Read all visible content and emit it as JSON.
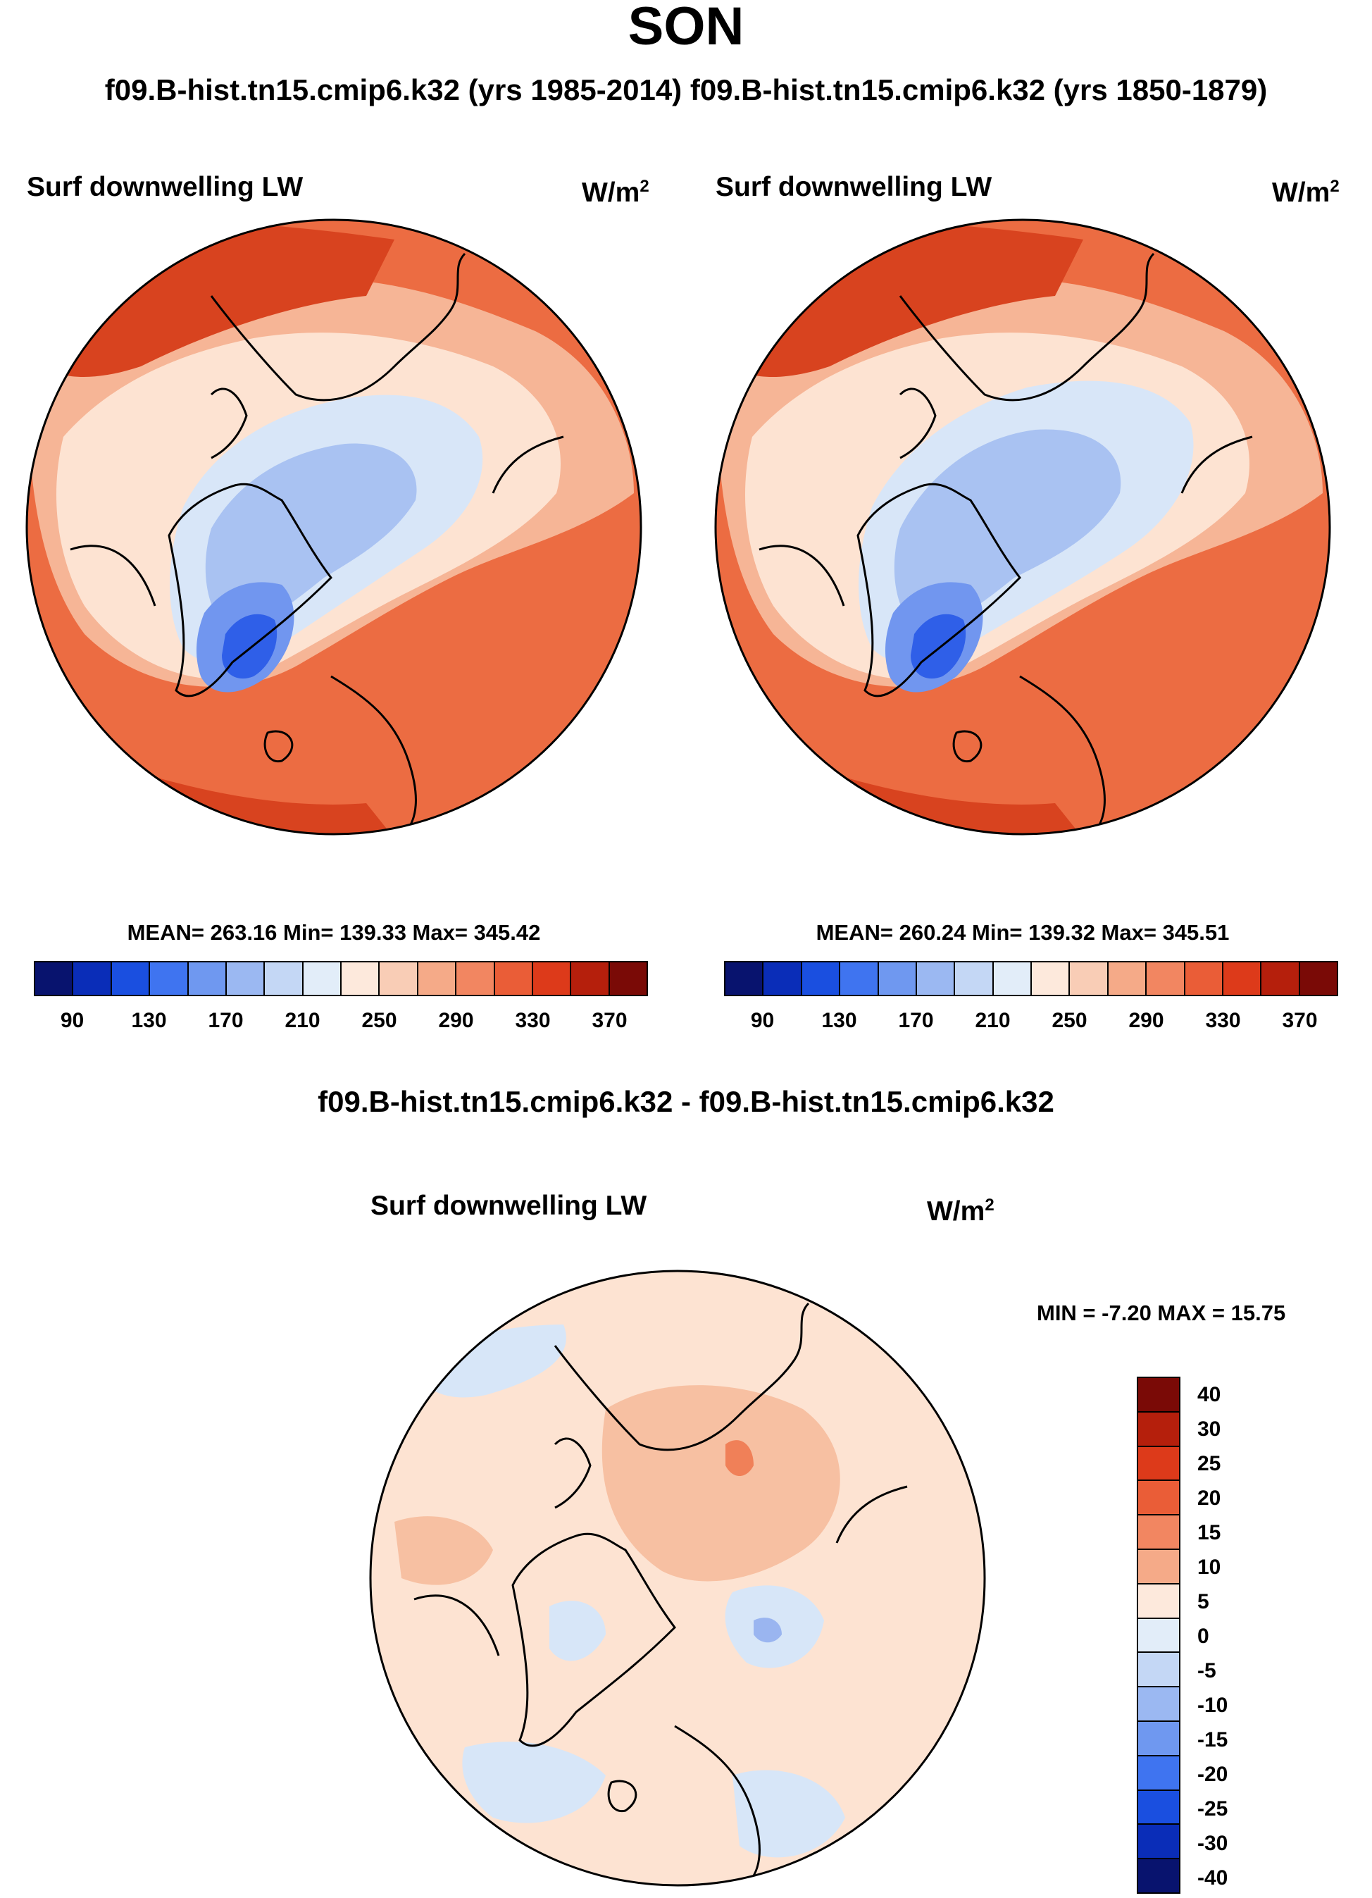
{
  "title": "SON",
  "subtitle": "f09.B-hist.tn15.cmip6.k32 (yrs 1985-2014) f09.B-hist.tn15.cmip6.k32 (yrs 1850-1879)",
  "diff_title": "f09.B-hist.tn15.cmip6.k32 - f09.B-hist.tn15.cmip6.k32",
  "panels": [
    {
      "label": "Surf downwelling LW",
      "units": "W/m",
      "units_sup": "2",
      "stats": "MEAN= 263.16  Min= 139.33  Max= 345.42"
    },
    {
      "label": "Surf downwelling LW",
      "units": "W/m",
      "units_sup": "2",
      "stats": "MEAN= 260.24  Min= 139.32  Max= 345.51"
    }
  ],
  "diff_panel": {
    "label": "Surf downwelling LW",
    "units": "W/m",
    "units_sup": "2",
    "stats": "MIN =  -7.20 MAX =  15.75"
  },
  "colorbar_abs": {
    "colors": [
      "#08136e",
      "#0a2db8",
      "#1a4fe0",
      "#3f74f0",
      "#6f98f0",
      "#9bb8f2",
      "#c4d7f5",
      "#e2edf9",
      "#fde9dc",
      "#f9cdb6",
      "#f5aa88",
      "#f28661",
      "#ea5d37",
      "#dd3a1a",
      "#b51f0c",
      "#7a0a06"
    ],
    "ticks": [
      "90",
      "130",
      "170",
      "210",
      "250",
      "290",
      "330",
      "370"
    ]
  },
  "colorbar_diff": {
    "colors": [
      "#7a0a06",
      "#b51f0c",
      "#dd3a1a",
      "#ea5d37",
      "#f28661",
      "#f5aa88",
      "#fde9dc",
      "#e2edf9",
      "#c4d7f5",
      "#9bb8f2",
      "#6f98f0",
      "#3f74f0",
      "#1a4fe0",
      "#0a2db8",
      "#08136e"
    ],
    "ticks": [
      "40",
      "30",
      "25",
      "20",
      "15",
      "10",
      "5",
      "0",
      "-5",
      "-10",
      "-15",
      "-20",
      "-25",
      "-30",
      "-40"
    ]
  },
  "fields": {
    "abs_warm": "#ec6c42",
    "abs_mid": "#f6b596",
    "abs_light": "#fde3d2",
    "abs_cold1": "#d8e6f8",
    "abs_cold2": "#a9c2f2",
    "abs_cold3": "#7196ef",
    "abs_cold4": "#2f5fe8",
    "abs_dark": "#d8431f",
    "diff_base": "#fde3d2",
    "diff_pos": "#f7c0a2",
    "diff_pos2": "#f08058",
    "diff_neg": "#d7e6f8",
    "diff_neg2": "#9ab5f0"
  }
}
